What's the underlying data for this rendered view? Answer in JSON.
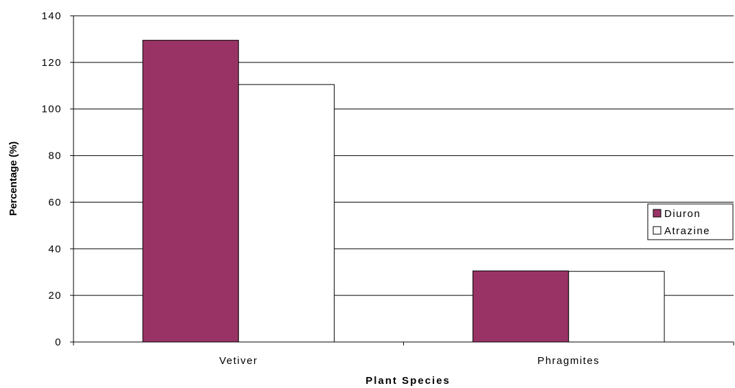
{
  "chart_data": {
    "type": "bar",
    "categories": [
      "Vetiver",
      "Phragmites"
    ],
    "series": [
      {
        "name": "Diuron",
        "values": [
          129.5,
          30.5
        ],
        "color": "#993366"
      },
      {
        "name": "Atrazine",
        "values": [
          110.5,
          30.3
        ],
        "color": "#ffffff"
      }
    ],
    "xlabel": "Plant Species",
    "ylabel": "Percentage (%)",
    "ylim": [
      0,
      140
    ],
    "yticks": [
      0,
      20,
      40,
      60,
      80,
      100,
      120,
      140
    ],
    "grid": true,
    "legend_position": "right"
  }
}
